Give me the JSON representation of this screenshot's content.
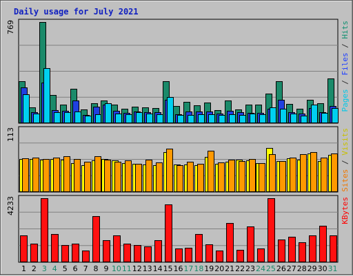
{
  "chart_data": {
    "type": "bar",
    "title": "Daily usage for July 2021",
    "categories": [
      "1",
      "2",
      "3",
      "4",
      "5",
      "6",
      "7",
      "8",
      "9",
      "10",
      "11",
      "12",
      "13",
      "14",
      "15",
      "16",
      "17",
      "18",
      "19",
      "20",
      "21",
      "22",
      "23",
      "24",
      "25",
      "26",
      "27",
      "28",
      "29",
      "30",
      "31"
    ],
    "weekend_days": [
      "3",
      "4",
      "10",
      "11",
      "17",
      "18",
      "24",
      "25",
      "31"
    ],
    "panels": [
      {
        "name": "top",
        "ymax_label": "769",
        "ymax": 769,
        "legend": [
          {
            "text": "Pages",
            "color": "#00c8e8"
          },
          {
            "text": " / ",
            "color": "#303030"
          },
          {
            "text": "Files",
            "color": "#2040ff"
          },
          {
            "text": " / ",
            "color": "#303030"
          },
          {
            "text": "Hits",
            "color": "#109070"
          }
        ],
        "series": [
          {
            "name": "Hits",
            "color": "#1b8a6a",
            "values": [
              320,
              120,
              769,
              215,
              140,
              260,
              105,
              150,
              175,
              140,
              110,
              125,
              120,
              115,
              320,
              130,
              160,
              135,
              155,
              100,
              175,
              105,
              140,
              140,
              225,
              320,
              145,
              110,
              180,
              150,
              340
            ]
          },
          {
            "name": "Files",
            "color": "#2040e0",
            "values": [
              270,
              85,
              310,
              100,
              95,
              175,
              65,
              125,
              140,
              95,
              80,
              90,
              85,
              85,
              180,
              70,
              90,
              90,
              90,
              75,
              95,
              85,
              80,
              80,
              110,
              180,
              85,
              75,
              115,
              85,
              130
            ]
          },
          {
            "name": "Pages",
            "color": "#00d0f0",
            "values": [
              220,
              75,
              420,
              85,
              85,
              90,
              55,
              70,
              150,
              75,
              70,
              85,
              75,
              70,
              200,
              65,
              65,
              70,
              70,
              65,
              70,
              65,
              75,
              70,
              120,
              110,
              75,
              60,
              140,
              80,
              115
            ]
          }
        ]
      },
      {
        "name": "middle",
        "ymax_label": "113",
        "ymax": 113,
        "legend": [
          {
            "text": "Sites",
            "color": "#f07800"
          },
          {
            "text": " / ",
            "color": "#303030"
          },
          {
            "text": "Visits",
            "color": "#c8c000"
          }
        ],
        "series": [
          {
            "name": "Visits",
            "color": "#ffff00",
            "values": [
              60,
              60,
              58,
              60,
              58,
              52,
              48,
              57,
              60,
              57,
              52,
              51,
              50,
              48,
              72,
              50,
              50,
              48,
              63,
              51,
              55,
              58,
              57,
              52,
              80,
              56,
              61,
              58,
              70,
              56,
              67
            ]
          },
          {
            "name": "Sites",
            "color": "#ff9900",
            "values": [
              61,
              62,
              60,
              62,
              64,
              59,
              55,
              64,
              58,
              55,
              57,
              51,
              58,
              54,
              78,
              49,
              55,
              51,
              75,
              54,
              58,
              56,
              60,
              52,
              68,
              56,
              62,
              68,
              72,
              62,
              70
            ]
          }
        ]
      },
      {
        "name": "bottom",
        "ymax_label": "4233",
        "ymax": 4233,
        "legend": [
          {
            "text": "KBytes",
            "color": "#ff0000"
          }
        ],
        "series": [
          {
            "name": "KBytes",
            "color": "#ff1010",
            "values": [
              1770,
              1250,
              4233,
              1850,
              1150,
              1250,
              765,
              3060,
              1440,
              1770,
              1250,
              1120,
              1040,
              1440,
              3840,
              890,
              970,
              1850,
              1170,
              780,
              2580,
              800,
              2370,
              920,
              4233,
              1520,
              1680,
              1300,
              1770,
              2430,
              1790
            ]
          }
        ]
      }
    ]
  }
}
